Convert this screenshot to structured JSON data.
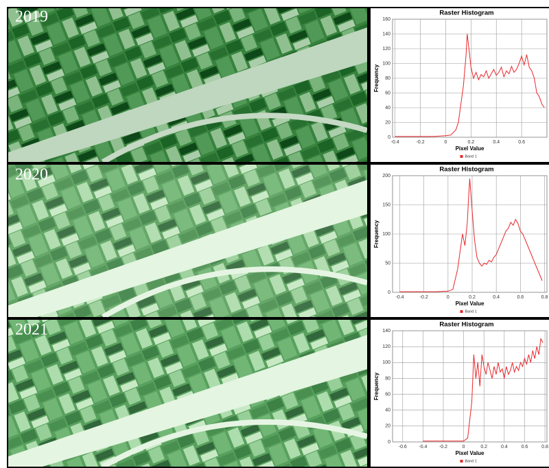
{
  "panels": [
    {
      "year": "2019"
    },
    {
      "year": "2020"
    },
    {
      "year": "2021"
    }
  ],
  "chart_data": [
    {
      "type": "line",
      "title": "Raster Histogram",
      "x_label": "Pixel Value",
      "y_label": "Frequency",
      "xlim": [
        -0.42,
        0.8
      ],
      "xticks": [
        -0.4,
        -0.2,
        0,
        0.2,
        0.4,
        0.6
      ],
      "ylim": [
        0,
        160
      ],
      "yticks": [
        0,
        20,
        40,
        60,
        80,
        100,
        120,
        140,
        160
      ],
      "grid": true,
      "x": [
        -0.4,
        -0.3,
        -0.2,
        -0.1,
        0,
        0.04,
        0.08,
        0.1,
        0.12,
        0.14,
        0.16,
        0.17,
        0.18,
        0.2,
        0.22,
        0.24,
        0.26,
        0.28,
        0.3,
        0.32,
        0.34,
        0.36,
        0.38,
        0.4,
        0.42,
        0.44,
        0.46,
        0.48,
        0.5,
        0.52,
        0.54,
        0.56,
        0.58,
        0.6,
        0.62,
        0.64,
        0.66,
        0.68,
        0.7,
        0.72,
        0.74,
        0.76,
        0.78
      ],
      "series": [
        {
          "name": "Band 1",
          "color": "#e8262a",
          "values": [
            1,
            1,
            1,
            1,
            2,
            3,
            10,
            20,
            45,
            70,
            110,
            140,
            125,
            95,
            80,
            88,
            78,
            85,
            82,
            90,
            80,
            86,
            92,
            84,
            88,
            95,
            82,
            90,
            86,
            96,
            88,
            92,
            100,
            110,
            98,
            112,
            95,
            90,
            80,
            60,
            55,
            45,
            40
          ]
        }
      ]
    },
    {
      "type": "line",
      "title": "Raster Histogram",
      "x_label": "Pixel Value",
      "y_label": "Frequency",
      "xlim": [
        -0.46,
        0.82
      ],
      "xticks": [
        -0.4,
        -0.2,
        0,
        0.2,
        0.4,
        0.6,
        0.8
      ],
      "ylim": [
        0,
        200
      ],
      "yticks": [
        0,
        50,
        100,
        150,
        200
      ],
      "grid": true,
      "x": [
        -0.4,
        -0.3,
        -0.2,
        -0.1,
        0,
        0.04,
        0.08,
        0.1,
        0.12,
        0.14,
        0.16,
        0.17,
        0.18,
        0.2,
        0.22,
        0.24,
        0.26,
        0.28,
        0.3,
        0.32,
        0.34,
        0.36,
        0.38,
        0.4,
        0.42,
        0.44,
        0.46,
        0.48,
        0.5,
        0.52,
        0.54,
        0.56,
        0.58,
        0.6,
        0.62,
        0.64,
        0.66,
        0.68,
        0.7,
        0.72,
        0.74,
        0.76,
        0.78
      ],
      "series": [
        {
          "name": "Band 1",
          "color": "#e8262a",
          "values": [
            1,
            1,
            1,
            1,
            2,
            5,
            40,
            70,
            100,
            80,
            120,
            160,
            195,
            140,
            90,
            60,
            50,
            45,
            50,
            48,
            55,
            52,
            60,
            65,
            75,
            85,
            95,
            105,
            110,
            120,
            115,
            125,
            118,
            105,
            100,
            90,
            80,
            70,
            60,
            50,
            40,
            30,
            20
          ]
        }
      ]
    },
    {
      "type": "line",
      "title": "Raster Histogram",
      "x_label": "Pixel Value",
      "y_label": "Frequency",
      "xlim": [
        -0.7,
        0.82
      ],
      "xticks": [
        -0.6,
        -0.4,
        -0.2,
        0,
        0.2,
        0.4,
        0.6,
        0.8
      ],
      "ylim": [
        0,
        140
      ],
      "yticks": [
        0,
        20,
        40,
        60,
        80,
        100,
        120,
        140
      ],
      "grid": true,
      "x": [
        -0.4,
        -0.3,
        -0.2,
        -0.1,
        0,
        0.04,
        0.08,
        0.1,
        0.12,
        0.14,
        0.16,
        0.17,
        0.18,
        0.2,
        0.22,
        0.24,
        0.26,
        0.28,
        0.3,
        0.32,
        0.34,
        0.36,
        0.38,
        0.4,
        0.42,
        0.44,
        0.46,
        0.48,
        0.5,
        0.52,
        0.54,
        0.56,
        0.58,
        0.6,
        0.62,
        0.64,
        0.66,
        0.68,
        0.7,
        0.72,
        0.74,
        0.76,
        0.78
      ],
      "series": [
        {
          "name": "Band 1",
          "color": "#e8262a",
          "values": [
            1,
            1,
            1,
            1,
            1,
            5,
            50,
            110,
            80,
            100,
            70,
            90,
            110,
            95,
            85,
            100,
            90,
            80,
            95,
            85,
            100,
            88,
            92,
            80,
            95,
            85,
            90,
            100,
            88,
            95,
            90,
            100,
            95,
            105,
            98,
            110,
            100,
            115,
            105,
            120,
            110,
            130,
            125
          ]
        }
      ]
    }
  ]
}
